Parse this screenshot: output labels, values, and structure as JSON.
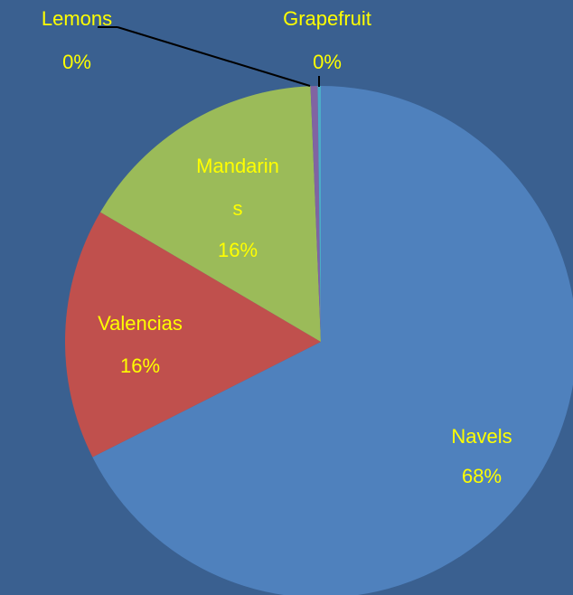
{
  "chart_data": {
    "type": "pie",
    "categories": [
      "Navels",
      "Valencias",
      "Mandarins",
      "Lemons",
      "Grapefruit"
    ],
    "values": [
      68,
      16,
      16,
      0.45,
      0.2
    ],
    "value_labels": [
      "68%",
      "16%",
      "16%",
      "0%",
      "0%"
    ],
    "colors": [
      "#4f81bd",
      "#c0504d",
      "#9bbb59",
      "#8064a2",
      "#4bacc6"
    ]
  }
}
